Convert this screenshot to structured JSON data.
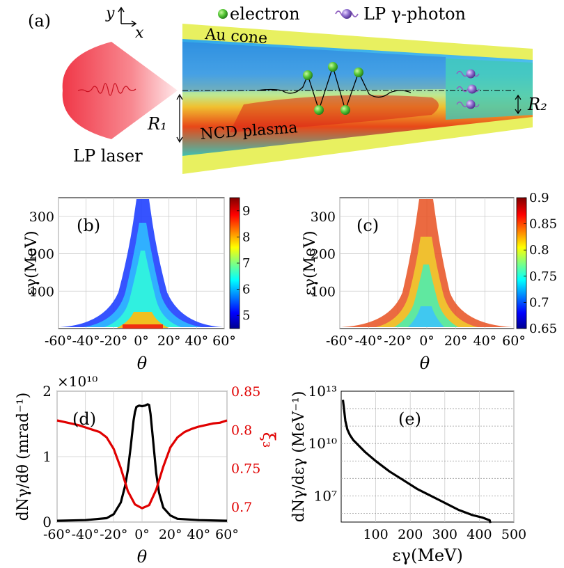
{
  "panel_a": {
    "label": "(a)",
    "axis_y": "y",
    "axis_x": "x",
    "legend_electron": "electron",
    "legend_photon": "LP γ-photon",
    "au_cone": "Au cone",
    "ncd_plasma": "NCD plasma",
    "lp_laser": "LP laser",
    "r1": "R₁",
    "r2": "R₂"
  },
  "colors": {
    "laser": "#f04050",
    "cone": "#e8f060",
    "plasma": "#40c0c0",
    "red_series": "#e00000"
  },
  "chart_data": [
    {
      "id": "b",
      "type": "heatmap",
      "label": "(b)",
      "xlabel": "θ",
      "ylabel": "εγ(MeV)",
      "xlim": [
        -60,
        60
      ],
      "ylim": [
        0,
        350
      ],
      "xticks": [
        "-60°",
        "-40°",
        "-20°",
        "0°",
        "20°",
        "40°",
        "60°"
      ],
      "yticks": [
        "100",
        "200",
        "300"
      ],
      "colorbar": {
        "min": 4.5,
        "max": 9.5,
        "ticks": [
          "5",
          "6",
          "7",
          "8",
          "9"
        ]
      }
    },
    {
      "id": "c",
      "type": "heatmap",
      "label": "(c)",
      "xlabel": "θ",
      "ylabel": "εγ(MeV)",
      "xlim": [
        -60,
        60
      ],
      "ylim": [
        0,
        350
      ],
      "xticks": [
        "-60°",
        "-40°",
        "-20°",
        "0°",
        "20°",
        "40°",
        "60°"
      ],
      "yticks": [
        "100",
        "200",
        "300"
      ],
      "colorbar": {
        "min": 0.65,
        "max": 0.9,
        "ticks": [
          "0.65",
          "0.7",
          "0.75",
          "0.8",
          "0.85",
          "0.9"
        ]
      }
    },
    {
      "id": "d",
      "type": "line",
      "label": "(d)",
      "xlabel": "θ",
      "ylabel": "dNγ/dθ (mrad⁻¹)",
      "ylabel_right": "ξ̄₃",
      "exponent": "×10¹⁰",
      "xlim": [
        -60,
        60
      ],
      "ylim": [
        0,
        2
      ],
      "ylim_right": [
        0.68,
        0.85
      ],
      "xticks": [
        "-60°",
        "-40°",
        "-20°",
        "0°",
        "20°",
        "40°",
        "60°"
      ],
      "yticks": [
        "0",
        "1",
        "2"
      ],
      "yticks_right": [
        "0.7",
        "0.75",
        "0.8",
        "0.85"
      ],
      "series": [
        {
          "name": "dN/dtheta",
          "axis": "left",
          "color": "#000000",
          "x": [
            -60,
            -40,
            -25,
            -20,
            -15,
            -12,
            -10,
            -8,
            -6,
            -5,
            -4,
            -2,
            0,
            2,
            4,
            5,
            6,
            8,
            10,
            12,
            15,
            20,
            25,
            40,
            60
          ],
          "y": [
            0.02,
            0.03,
            0.06,
            0.12,
            0.3,
            0.55,
            0.8,
            1.15,
            1.55,
            1.68,
            1.76,
            1.78,
            1.77,
            1.78,
            1.8,
            1.79,
            1.65,
            1.2,
            0.75,
            0.45,
            0.22,
            0.1,
            0.05,
            0.03,
            0.02
          ]
        },
        {
          "name": "xi3",
          "axis": "right",
          "color": "#e00000",
          "x": [
            -60,
            -55,
            -50,
            -45,
            -40,
            -35,
            -30,
            -25,
            -20,
            -15,
            -10,
            -5,
            0,
            5,
            10,
            15,
            20,
            25,
            30,
            35,
            40,
            45,
            50,
            55,
            60
          ],
          "y": [
            0.812,
            0.81,
            0.808,
            0.806,
            0.803,
            0.8,
            0.797,
            0.79,
            0.775,
            0.75,
            0.72,
            0.703,
            0.698,
            0.702,
            0.722,
            0.752,
            0.777,
            0.79,
            0.797,
            0.801,
            0.804,
            0.806,
            0.808,
            0.809,
            0.812
          ]
        }
      ]
    },
    {
      "id": "e",
      "type": "line",
      "label": "(e)",
      "xlabel": "εγ(MeV)",
      "ylabel": "dNγ/dεγ (MeV⁻¹)",
      "xlim": [
        0,
        500
      ],
      "ylim_log10": [
        5.5,
        13
      ],
      "xticks": [
        "100",
        "200",
        "300",
        "400",
        "500"
      ],
      "yticks": [
        "10⁷",
        "10¹⁰",
        "10¹³"
      ],
      "series": [
        {
          "name": "spectrum",
          "color": "#000000",
          "x": [
            5,
            8,
            12,
            18,
            25,
            35,
            50,
            70,
            100,
            140,
            180,
            220,
            260,
            300,
            340,
            380,
            410,
            430,
            432
          ],
          "log10y": [
            12.5,
            12.0,
            11.3,
            10.8,
            10.5,
            10.2,
            9.9,
            9.5,
            9.0,
            8.4,
            7.9,
            7.4,
            7.0,
            6.6,
            6.2,
            5.9,
            5.75,
            5.6,
            5.45
          ]
        }
      ]
    }
  ]
}
